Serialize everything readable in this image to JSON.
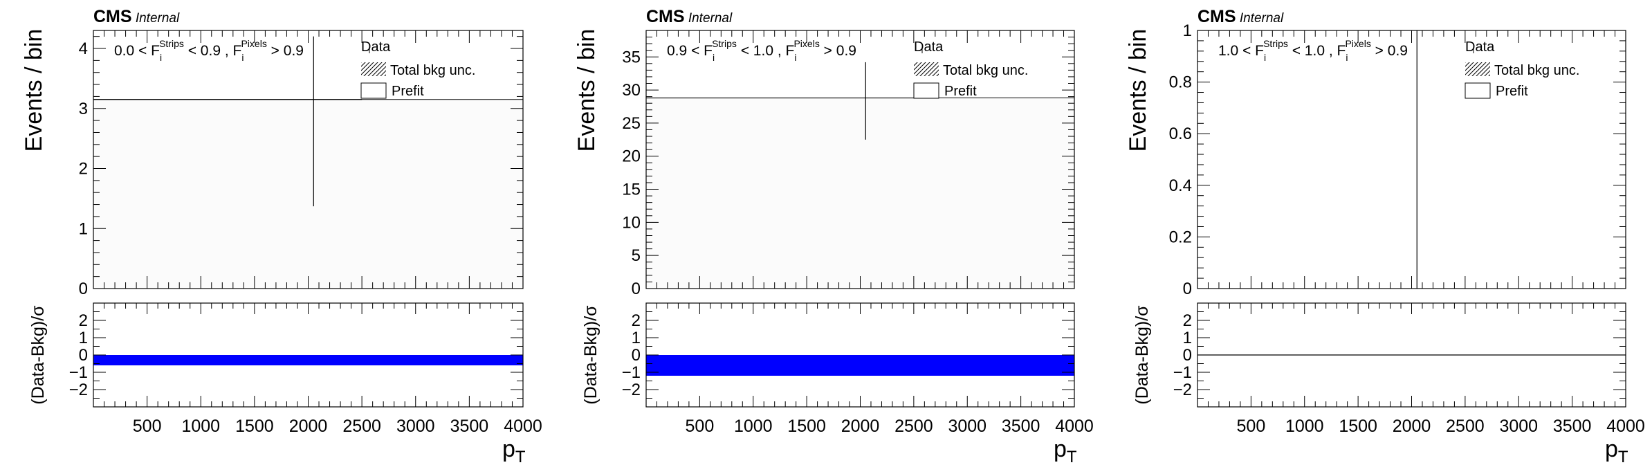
{
  "experiment": "CMS",
  "status": "Internal",
  "ylabel_top": "Events / bin",
  "ylabel_ratio": "(Data-Bkg)/σ",
  "xlabel": "p",
  "xlabel_sub": "T",
  "legend": {
    "data": "Data",
    "bkg_unc": "Total bkg unc.",
    "prefit": "Prefit"
  },
  "colors": {
    "ratio_band": "#0000ff",
    "axis": "#000000",
    "prefit_fill": "#fbfbfb"
  },
  "chart_data": [
    {
      "type": "bar",
      "region": {
        "lo": "0.0",
        "mid": "0.9",
        "hi": "0.9",
        "op1": "<",
        "op2": "<",
        "op3": ">"
      },
      "xlim": [
        0,
        4000
      ],
      "ylim": [
        0,
        4.3
      ],
      "xticks": [
        500,
        1000,
        1500,
        2000,
        2500,
        3000,
        3500,
        4000
      ],
      "yticks": [
        0,
        1,
        2,
        3,
        4
      ],
      "prefit": {
        "x0": 0,
        "x1": 4000,
        "y": 3.15
      },
      "data_point": {
        "x": 2050,
        "y": 3.15,
        "xerr_lo": 2050,
        "xerr_hi": 450,
        "yerr_lo": 1.78,
        "yerr_hi": 1.05
      },
      "ratio": {
        "ylim": [
          -3,
          3
        ],
        "yticks": [
          -2,
          -1,
          0,
          1,
          2
        ],
        "band": [
          -0.6,
          0.0
        ]
      }
    },
    {
      "type": "bar",
      "region": {
        "lo": "0.9",
        "mid": "1.0",
        "hi": "0.9",
        "op1": "<",
        "op2": "<",
        "op3": ">"
      },
      "xlim": [
        0,
        4000
      ],
      "ylim": [
        0,
        39
      ],
      "xticks": [
        500,
        1000,
        1500,
        2000,
        2500,
        3000,
        3500,
        4000
      ],
      "yticks": [
        0,
        5,
        10,
        15,
        20,
        25,
        30,
        35
      ],
      "prefit": {
        "x0": 0,
        "x1": 4000,
        "y": 28.8
      },
      "data_point": {
        "x": 2050,
        "y": 28.8,
        "xerr_lo": 2050,
        "xerr_hi": 450,
        "yerr_lo": 6.3,
        "yerr_hi": 5.4
      },
      "ratio": {
        "ylim": [
          -3,
          3
        ],
        "yticks": [
          -2,
          -1,
          0,
          1,
          2
        ],
        "band": [
          -1.2,
          0.0
        ]
      }
    },
    {
      "type": "bar",
      "region": {
        "lo": "1.0",
        "mid": "1.0",
        "hi": "0.9",
        "op1": "<",
        "op2": "<",
        "op3": ">"
      },
      "xlim": [
        0,
        4000
      ],
      "ylim": [
        0,
        1
      ],
      "xticks": [
        500,
        1000,
        1500,
        2000,
        2500,
        3000,
        3500,
        4000
      ],
      "yticks": [
        0,
        0.2,
        0.4,
        0.6,
        0.8,
        1
      ],
      "prefit": null,
      "data_point": {
        "x": 2050,
        "y": 0,
        "xerr_lo": 0,
        "xerr_hi": 0,
        "yerr_lo": 0,
        "yerr_hi": 1
      },
      "ratio": {
        "ylim": [
          -3,
          3
        ],
        "yticks": [
          -2,
          -1,
          0,
          1,
          2
        ],
        "band": [
          0,
          0
        ]
      }
    }
  ]
}
